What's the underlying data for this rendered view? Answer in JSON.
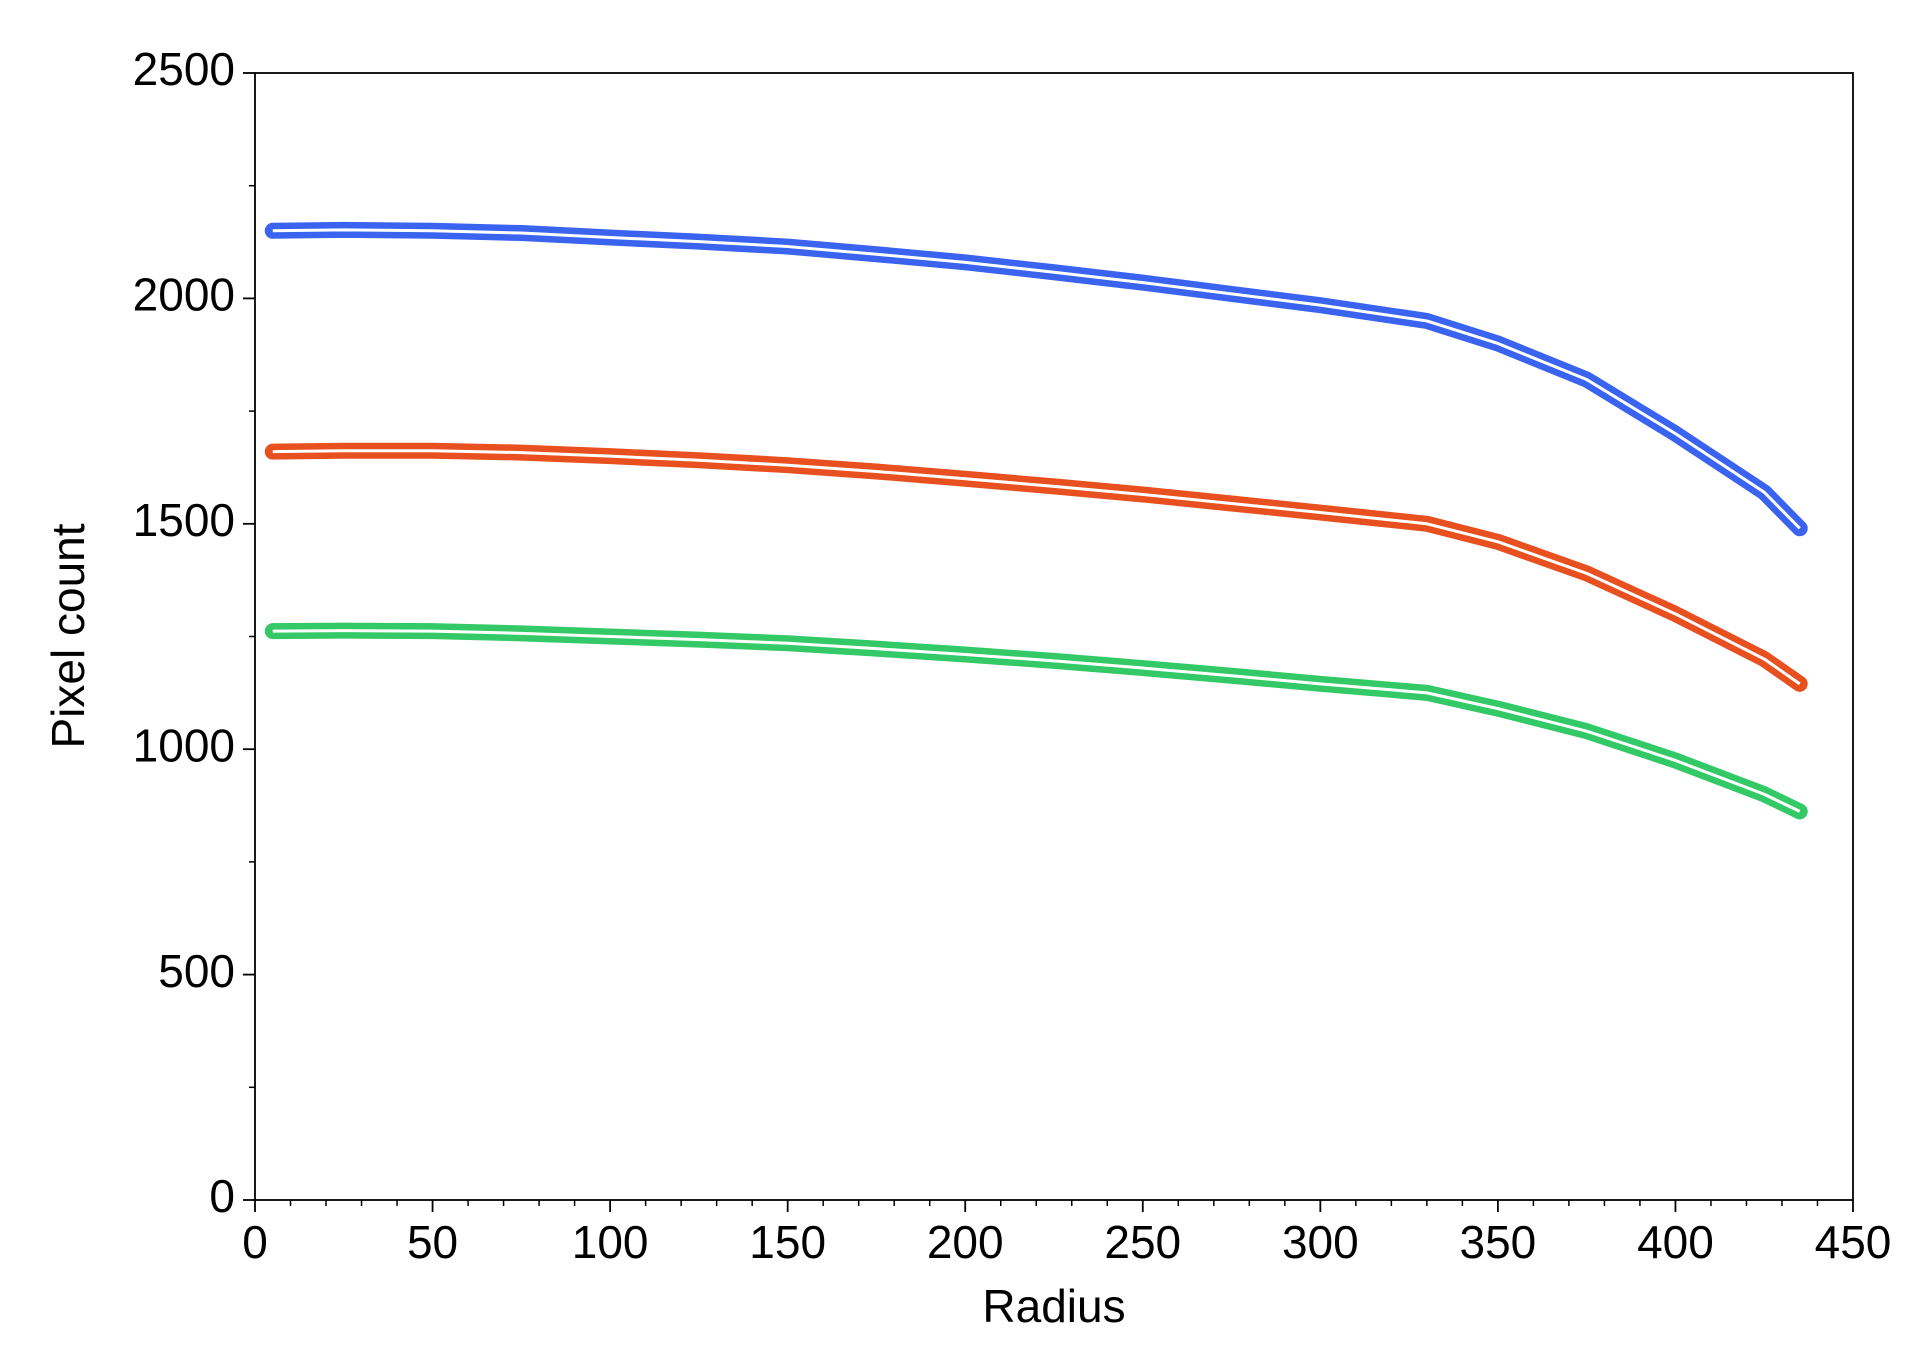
{
  "chart_data": {
    "type": "line",
    "x_label": "Radius",
    "y_label": "Pixel count",
    "x": [
      5,
      25,
      50,
      75,
      100,
      125,
      150,
      175,
      200,
      225,
      250,
      275,
      300,
      330,
      350,
      375,
      400,
      425,
      435
    ],
    "series": [
      {
        "color": "#3a63f0",
        "values": [
          2150,
          2152,
          2150,
          2145,
          2135,
          2126,
          2115,
          2098,
          2080,
          2058,
          2035,
          2010,
          1985,
          1950,
          1900,
          1820,
          1700,
          1570,
          1490
        ]
      },
      {
        "color": "#e8501f",
        "values": [
          1660,
          1662,
          1662,
          1658,
          1650,
          1641,
          1630,
          1616,
          1600,
          1583,
          1565,
          1545,
          1525,
          1500,
          1460,
          1390,
          1300,
          1200,
          1145
        ]
      },
      {
        "color": "#33c966",
        "values": [
          1262,
          1263,
          1262,
          1257,
          1250,
          1243,
          1235,
          1223,
          1210,
          1196,
          1180,
          1163,
          1145,
          1125,
          1090,
          1040,
          975,
          900,
          862
        ]
      }
    ],
    "fit_color": "#ffffff",
    "xlim": [
      0,
      450
    ],
    "xticks": [
      0,
      50,
      100,
      150,
      200,
      250,
      300,
      350,
      400,
      450
    ],
    "ylim": [
      0,
      2500
    ],
    "yticks": [
      0,
      500,
      1000,
      1500,
      2000,
      2500
    ],
    "grid": false
  }
}
